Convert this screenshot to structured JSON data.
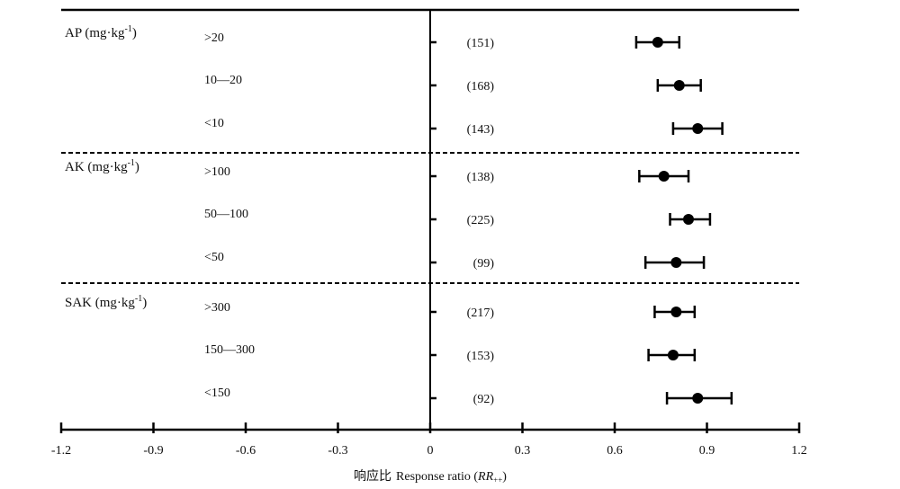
{
  "chart_data": {
    "type": "forest",
    "x_ticks": [
      "-1.2",
      "-0.9",
      "-0.6",
      "-0.3",
      "0",
      "0.3",
      "0.6",
      "0.9",
      "1.2"
    ],
    "xlim": [
      -1.2,
      1.2
    ],
    "xlabel_cn": "响应比",
    "xlabel_en": "Response ratio (",
    "xlabel_var": "RR",
    "xlabel_sub": "++",
    "xlabel_close": ")",
    "groups": [
      {
        "name": "AP (mg·kg",
        "sup": "-1",
        "close": ")",
        "rows": [
          {
            "label": ">20",
            "n": "(151)",
            "mean": 0.74,
            "lo": 0.67,
            "hi": 0.81
          },
          {
            "label": "10—20",
            "n": "(168)",
            "mean": 0.81,
            "lo": 0.74,
            "hi": 0.88
          },
          {
            "label": "<10",
            "n": "(143)",
            "mean": 0.87,
            "lo": 0.79,
            "hi": 0.95
          }
        ]
      },
      {
        "name": "AK (mg·kg",
        "sup": "-1",
        "close": ")",
        "rows": [
          {
            "label": ">100",
            "n": "(138)",
            "mean": 0.76,
            "lo": 0.68,
            "hi": 0.84
          },
          {
            "label": "50—100",
            "n": "(225)",
            "mean": 0.84,
            "lo": 0.78,
            "hi": 0.91
          },
          {
            "label": "<50",
            "n": "(99)",
            "mean": 0.8,
            "lo": 0.7,
            "hi": 0.89
          }
        ]
      },
      {
        "name": "SAK (mg·kg",
        "sup": "-1",
        "close": ")",
        "rows": [
          {
            "label": ">300",
            "n": "(217)",
            "mean": 0.8,
            "lo": 0.73,
            "hi": 0.86
          },
          {
            "label": "150—300",
            "n": "(153)",
            "mean": 0.79,
            "lo": 0.71,
            "hi": 0.86
          },
          {
            "label": "<150",
            "n": "(92)",
            "mean": 0.87,
            "lo": 0.77,
            "hi": 0.98
          }
        ]
      }
    ]
  }
}
